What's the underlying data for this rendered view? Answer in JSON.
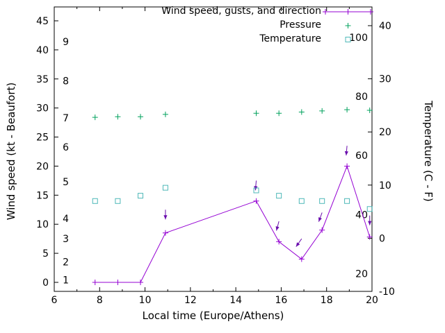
{
  "figure": {
    "background": "#ffffff",
    "xlabel": "Local time (Europe/Athens)",
    "ylabel_left": "Wind speed (kt - Beaufort)",
    "ylabel_right": "Temperature (C - F)"
  },
  "legend": {
    "entries": [
      {
        "label": "Wind speed, gusts, and direction",
        "sample": "line-plus",
        "color": "#9400d3"
      },
      {
        "label": "Pressure",
        "sample": "plus",
        "color": "#00a15c"
      },
      {
        "label": "Temperature",
        "sample": "open-square",
        "color": "#4db8b8"
      }
    ]
  },
  "chart_data": {
    "type": "line",
    "title": "",
    "x_axis": {
      "label": "Local time (Europe/Athens)",
      "range": [
        6,
        20
      ],
      "major_ticks": [
        6,
        8,
        10,
        12,
        14,
        16,
        18,
        20
      ],
      "minor_tick_step": 1
    },
    "y_axis_left": {
      "label": "Wind speed (kt - Beaufort)",
      "ticks": [
        0,
        5,
        10,
        15,
        20,
        25,
        30,
        35,
        40,
        45
      ],
      "beaufort_labels": [
        {
          "label": "1",
          "kt": 0.4
        },
        {
          "label": "2",
          "kt": 3.5
        },
        {
          "label": "3",
          "kt": 7.5
        },
        {
          "label": "4",
          "kt": 11
        },
        {
          "label": "5",
          "kt": 17.3
        },
        {
          "label": "6",
          "kt": 23.3
        },
        {
          "label": "7",
          "kt": 28.3
        },
        {
          "label": "8",
          "kt": 34.7
        },
        {
          "label": "9",
          "kt": 41.4
        }
      ]
    },
    "y_axis_right": {
      "label": "Temperature (C - F)",
      "ticks_c": [
        -10,
        0,
        10,
        20,
        30,
        40
      ],
      "fahrenheit_labels": [
        20,
        40,
        60,
        80,
        100
      ]
    },
    "x": [
      7.8,
      8.8,
      9.8,
      10.9,
      14.9,
      15.9,
      16.9,
      17.8,
      18.9,
      19.9
    ],
    "series": [
      {
        "name": "Wind speed",
        "axis": "left",
        "style": "line+plus",
        "color": "#9400d3",
        "values": [
          0,
          0,
          0,
          8.5,
          14,
          7,
          4,
          9,
          20,
          7.8
        ]
      },
      {
        "name": "Wind gusts and direction",
        "axis": "left",
        "style": "arrow",
        "color": "#6a0dad",
        "values": [
          null,
          null,
          null,
          12.5,
          17.5,
          10.5,
          7.5,
          12,
          23.5,
          11.5
        ],
        "arrow_angles_deg_cw_from_up": [
          null,
          null,
          null,
          180,
          185,
          195,
          215,
          200,
          185,
          180
        ]
      },
      {
        "name": "Pressure",
        "axis": "left",
        "style": "plus",
        "color": "#00a15c",
        "values": [
          28.4,
          28.5,
          28.5,
          28.9,
          29.1,
          29.1,
          29.3,
          29.5,
          29.7,
          29.6
        ]
      },
      {
        "name": "Temperature",
        "axis": "right",
        "style": "open-square",
        "color": "#4db8b8",
        "values": [
          7,
          7,
          8,
          9.5,
          9,
          8,
          7,
          7,
          7,
          5.5
        ]
      }
    ]
  }
}
